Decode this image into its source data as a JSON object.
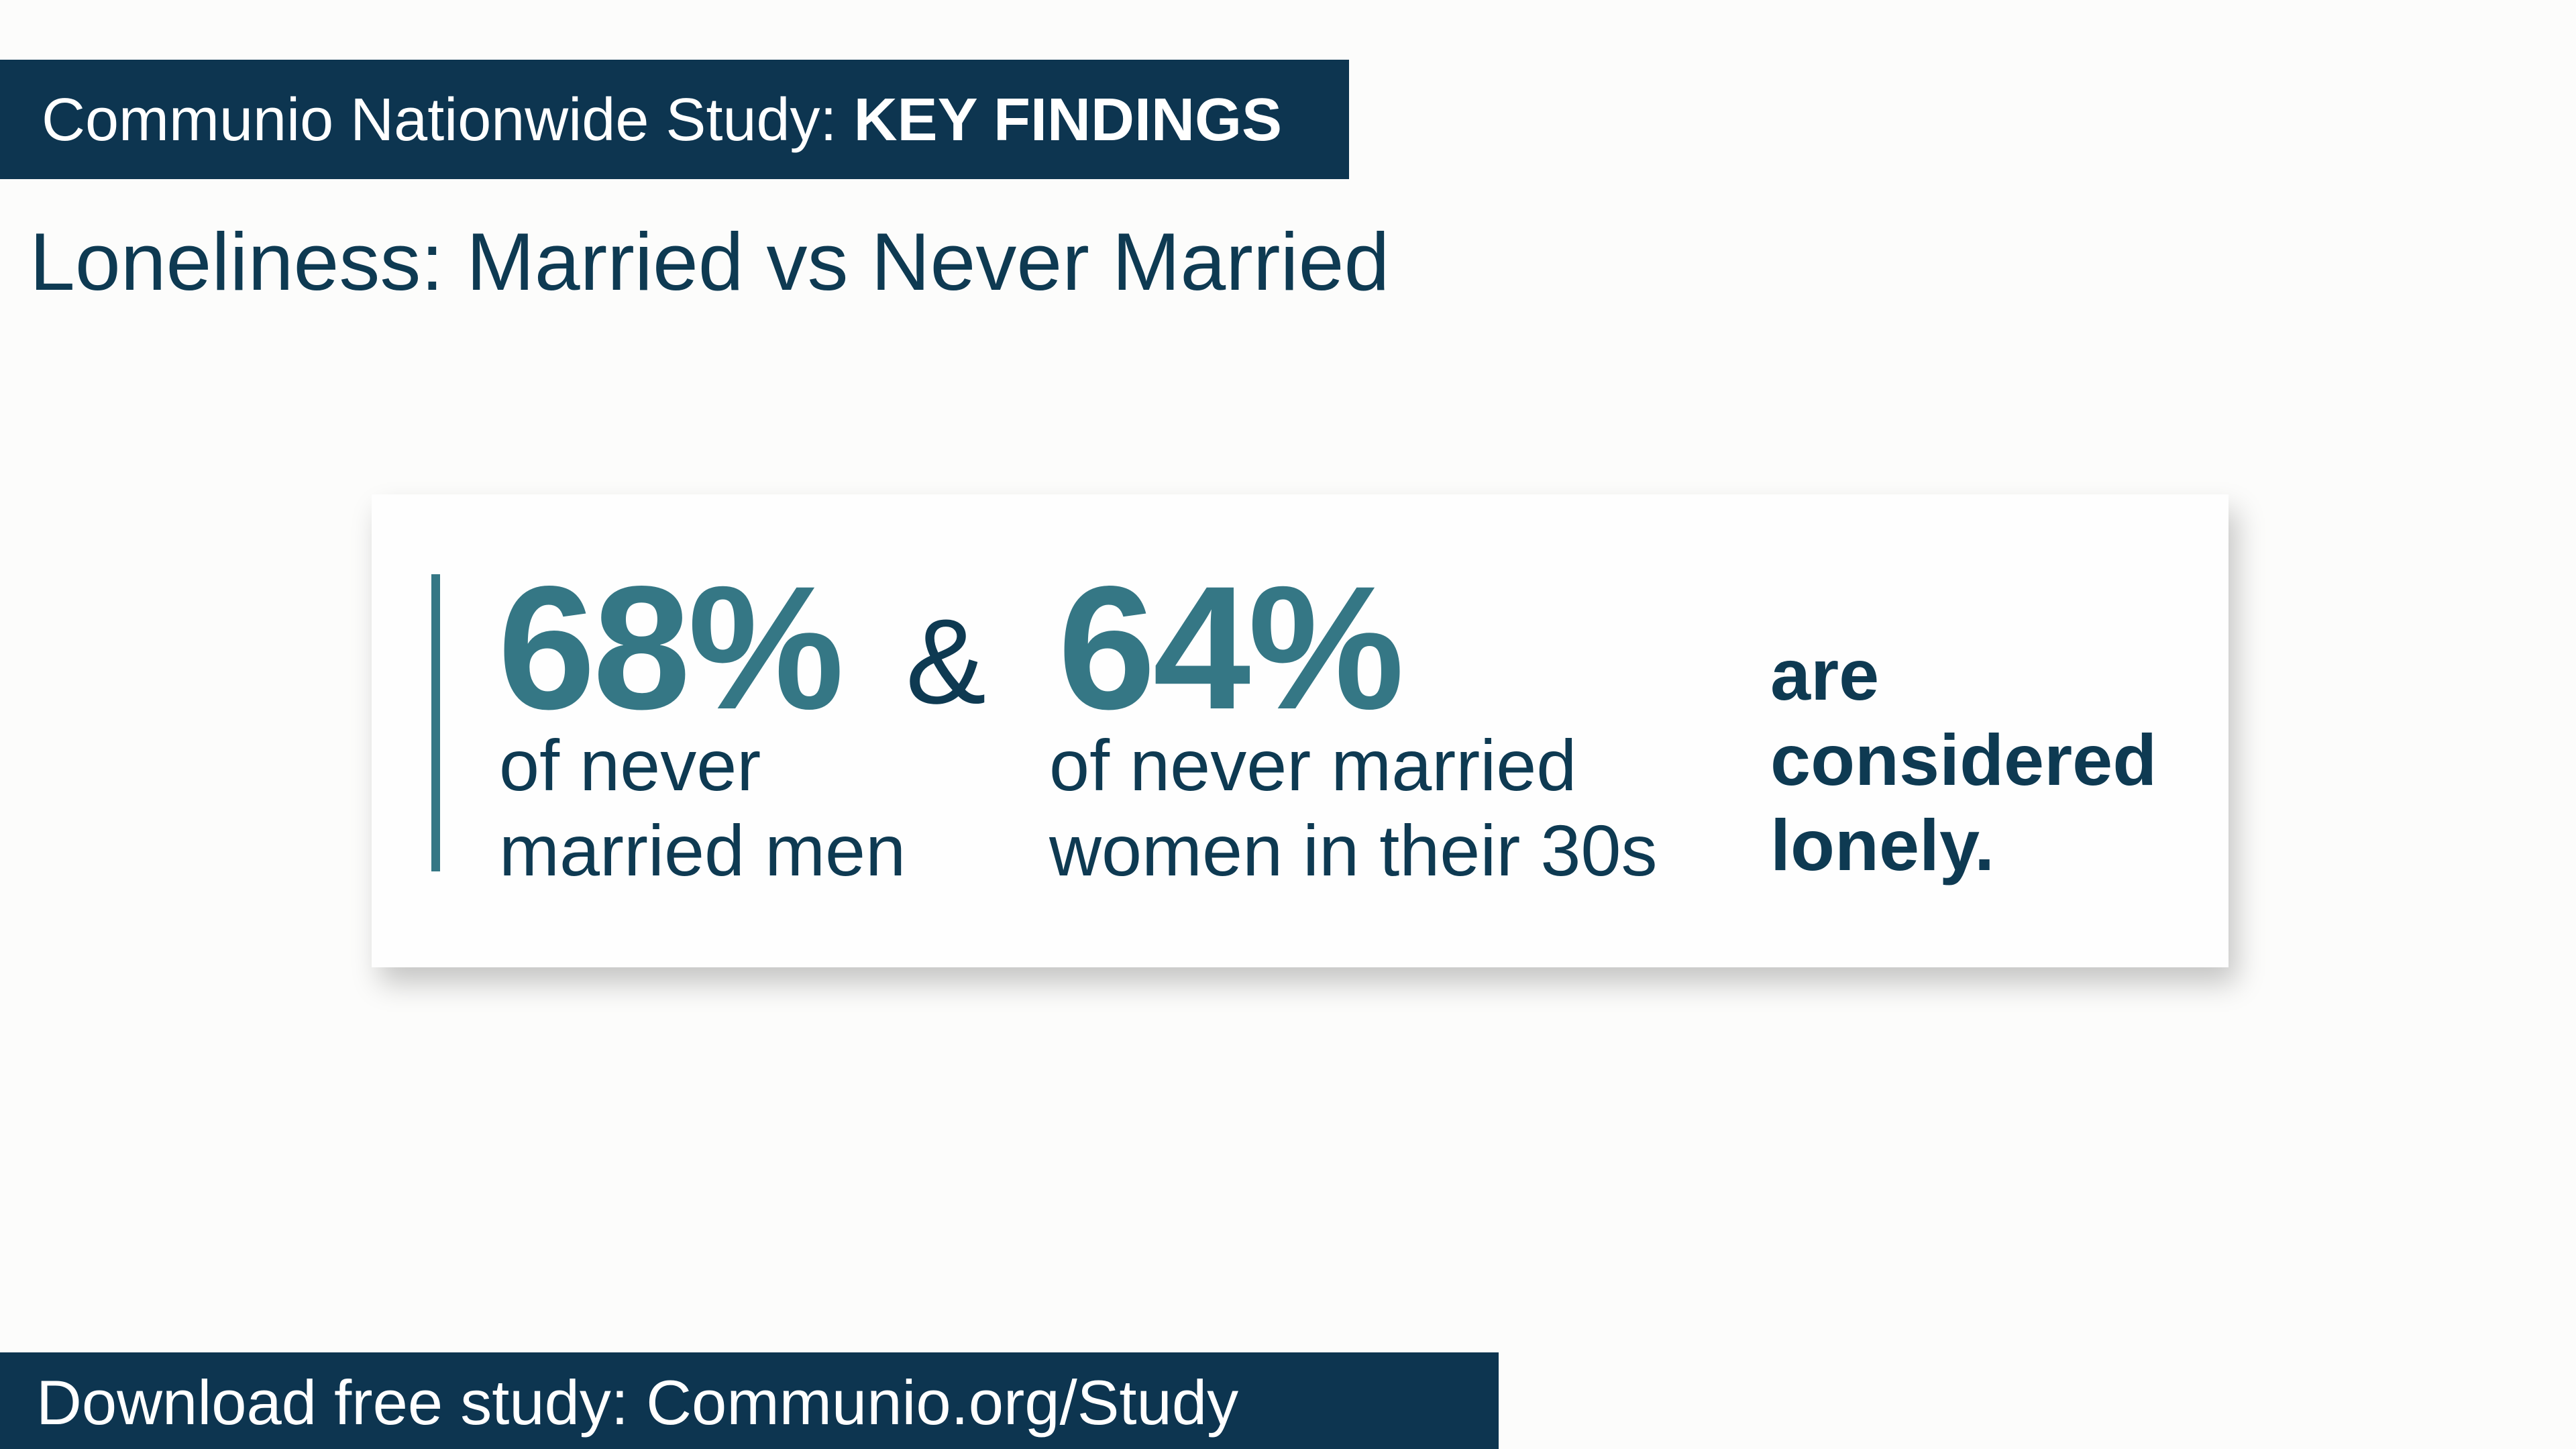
{
  "header": {
    "prefix": "Communio Nationwide Study: ",
    "emphasis": "KEY FINDINGS"
  },
  "subtitle": "Loneliness: Married vs Never Married",
  "card": {
    "stat1": {
      "value": "68%",
      "caption_line1": "of never",
      "caption_line2": "married men"
    },
    "connector": "&",
    "stat2": {
      "value": "64%",
      "caption_line1": "of never married",
      "caption_line2": "women in their 30s"
    },
    "conclusion": {
      "line1": "are",
      "line2": "considered",
      "line3": "lonely."
    }
  },
  "footer": {
    "text": "Download free study: Communio.org/Study"
  },
  "colors": {
    "navy": "#0d3550",
    "teal": "#357785",
    "background": "#fcfcfb"
  }
}
